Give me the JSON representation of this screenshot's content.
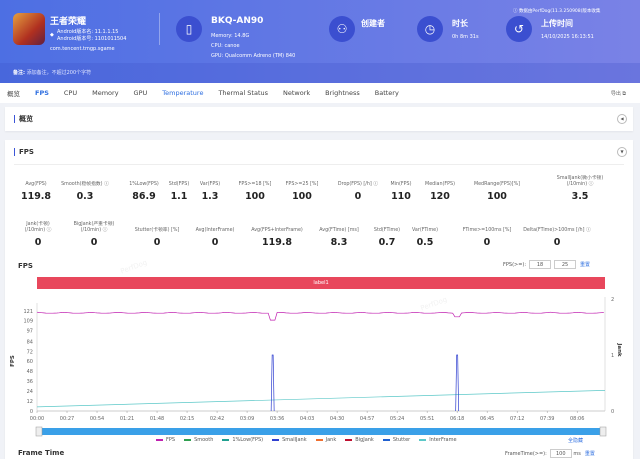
{
  "app": {
    "name": "王者荣耀",
    "android_version_name": "Android版本名: 11.1.1.15",
    "android_version_code": "Android版本号: 1101011504",
    "package": "com.tencent.tmgp.sgame"
  },
  "device": {
    "name": "BKQ-AN90",
    "memory": "Memory: 14.8G",
    "cpu": "CPU: canoe",
    "gpu": "GPU: Qualcomm Adreno (TM) 840"
  },
  "creator": {
    "label": "创建者"
  },
  "duration": {
    "label": "时长",
    "value": "0h 8m 31s"
  },
  "upload": {
    "label": "上传时间",
    "value": "14/10/2025 16:13:51"
  },
  "data_source": "数据由PerfDog(11.3.250908)版本收集",
  "note": {
    "label": "备注:",
    "placeholder": "添加备注，不超过200个字符"
  },
  "tabs": [
    "概览",
    "FPS",
    "CPU",
    "Memory",
    "GPU",
    "Temperature",
    "Thermal Status",
    "Network",
    "Brightness",
    "Battery"
  ],
  "export_label": "导出",
  "overview_title": "概览",
  "fps_title": "FPS",
  "stats_row1": [
    {
      "label": "Avg(FPS)",
      "value": "119.8"
    },
    {
      "label": "Smooth(稳帧指数) ⓘ",
      "value": "0.3"
    },
    {
      "label": "1%Low(FPS)",
      "value": "86.9"
    },
    {
      "label": "Std(FPS)",
      "value": "1.1"
    },
    {
      "label": "Var(FPS)",
      "value": "1.3"
    },
    {
      "label": "FPS>=18 [%]",
      "value": "100"
    },
    {
      "label": "FPS>=25 [%]",
      "value": "100"
    },
    {
      "label": "Drop(FPS) [/h] ⓘ",
      "value": "0"
    },
    {
      "label": "Min(FPS)",
      "value": "110"
    },
    {
      "label": "Median(FPS)",
      "value": "120"
    },
    {
      "label": "MedRange(FPS)[%]",
      "value": "100"
    },
    {
      "label": "SmallJank(微小卡顿)\n(/10min) ⓘ",
      "value": "3.5"
    }
  ],
  "stats_row2": [
    {
      "label": "Jank(卡顿)\n(/10min) ⓘ",
      "value": "0"
    },
    {
      "label": "BigJank(严重卡顿)\n(/10min) ⓘ",
      "value": "0"
    },
    {
      "label": "Stutter(卡顿率) [%]",
      "value": "0"
    },
    {
      "label": "Avg(InterFrame)",
      "value": "0"
    },
    {
      "label": "Avg(FPS+InterFrame)",
      "value": "119.8"
    },
    {
      "label": "Avg(FTime) [ms]",
      "value": "8.3"
    },
    {
      "label": "Std(FTime)",
      "value": "0.7"
    },
    {
      "label": "Var(FTime)",
      "value": "0.5"
    },
    {
      "label": "FTime>=100ms [%]",
      "value": "0"
    },
    {
      "label": "Delta(FTime)>100ms [/h] ⓘ",
      "value": "0"
    }
  ],
  "fps_chart_title": "FPS",
  "fps_threshold": {
    "label": "FPS(>=):",
    "v1": "18",
    "v2": "25",
    "reset": "重置"
  },
  "label_bar": "label1",
  "chart_data": {
    "type": "line",
    "ylabel": "FPS",
    "y2label": "Jank",
    "yticks": [
      "121",
      "109",
      "97",
      "84",
      "72",
      "60",
      "48",
      "36",
      "24",
      "12",
      "0"
    ],
    "y2ticks": [
      "2",
      "1",
      "0"
    ],
    "ylim": [
      0,
      121
    ],
    "y2lim": [
      0,
      2
    ],
    "xticks": [
      "00:00",
      "00:27",
      "00:54",
      "01:21",
      "01:48",
      "02:15",
      "02:42",
      "03:09",
      "03:36",
      "04:03",
      "04:30",
      "04:57",
      "05:24",
      "05:51",
      "06:18",
      "06:45",
      "07:12",
      "07:39",
      "08:06"
    ],
    "duration_s": 511,
    "series": [
      {
        "name": "FPS",
        "color": "#c020b0",
        "baseline": 120,
        "dips": [
          {
            "t": 212,
            "v": 110
          },
          {
            "t": 378,
            "v": 114
          }
        ]
      },
      {
        "name": "SmallJank",
        "color": "#3040d0",
        "axis": "right",
        "spikes": [
          {
            "t": 212,
            "v": 1
          },
          {
            "t": 378,
            "v": 1
          }
        ]
      },
      {
        "name": "InterFrame",
        "color": "#5cc8c8",
        "start": 5,
        "end": 25
      }
    ],
    "legend": [
      "FPS",
      "Smooth",
      "1%Low(FPS)",
      "SmallJank",
      "Jank",
      "BigJank",
      "Stutter",
      "InterFrame"
    ],
    "legend_colors": [
      "#c020b0",
      "#30a050",
      "#20a090",
      "#3040d0",
      "#f07030",
      "#c01030",
      "#2060d0",
      "#5cc8c8"
    ]
  },
  "hide_all": "全隐藏",
  "frametime_title": "Frame Time",
  "frametime_threshold": {
    "label": "FrameTime(>=):",
    "value": "100",
    "unit": "ms",
    "reset": "重置"
  }
}
